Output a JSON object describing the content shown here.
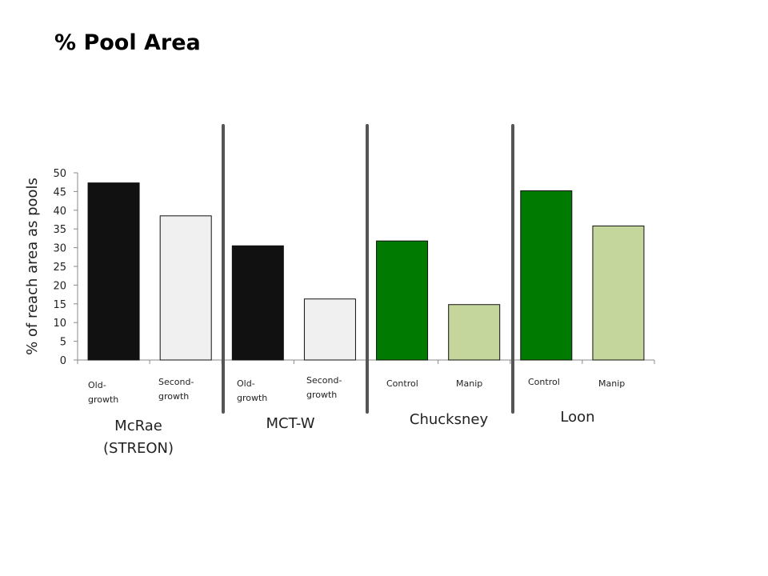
{
  "slide": {
    "title": "% Pool Area"
  },
  "chart_data": {
    "type": "bar",
    "title": "",
    "xlabel": "",
    "ylabel": "% of reach area as pools",
    "ylim": [
      0,
      50
    ],
    "yticks": [
      0,
      5,
      10,
      15,
      20,
      25,
      30,
      35,
      40,
      45,
      50
    ],
    "grid": false,
    "legend": "none",
    "categories": [
      "Old-growth",
      "Second-growth",
      "Old-growth",
      "Second-growth",
      "Control",
      "Manip",
      "Control",
      "Manip"
    ],
    "category_labels": [
      [
        "Old-",
        "growth"
      ],
      [
        "Second-",
        "growth"
      ],
      [
        "Old-",
        "growth"
      ],
      [
        "Second-",
        "growth"
      ],
      [
        "Control"
      ],
      [
        "Manip"
      ],
      [
        "Control"
      ],
      [
        "Manip"
      ]
    ],
    "values": [
      47.3,
      38.5,
      30.5,
      16.3,
      31.8,
      14.8,
      45.2,
      35.8
    ],
    "bar_colors": [
      "#111111",
      "#f0f0f0",
      "#111111",
      "#f0f0f0",
      "#007a00",
      "#c4d69b",
      "#007a00",
      "#c4d69b"
    ],
    "groups": [
      {
        "label_lines": [
          "McRae",
          "(STREON)"
        ]
      },
      {
        "label_lines": [
          "MCT-W"
        ]
      },
      {
        "label_lines": [
          "Chucksney"
        ]
      },
      {
        "label_lines": [
          "Loon"
        ]
      }
    ],
    "divider_color": "#555555"
  }
}
